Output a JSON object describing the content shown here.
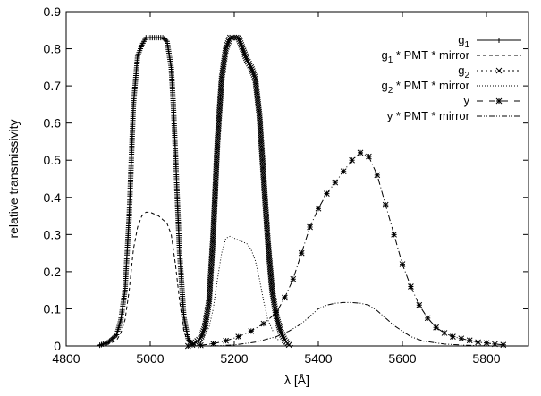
{
  "chart_data": {
    "type": "line",
    "title": "",
    "xlabel": "λ [Å]",
    "ylabel": "relative transmissivity",
    "xlim": [
      4800,
      5900
    ],
    "ylim": [
      0,
      0.9
    ],
    "xticks": [
      4800,
      5000,
      5200,
      5400,
      5600,
      5800
    ],
    "yticks": [
      0,
      0.1,
      0.2,
      0.3,
      0.4,
      0.5,
      0.6,
      0.7,
      0.8,
      0.9
    ],
    "xtick_labels": [
      "4800",
      "5000",
      "5200",
      "5400",
      "5600",
      "5800"
    ],
    "ytick_labels": [
      "0",
      "0.1",
      "0.2",
      "0.3",
      "0.4",
      "0.5",
      "0.6",
      "0.7",
      "0.8",
      "0.9"
    ],
    "grid": false,
    "legend_position": "top-right",
    "series": [
      {
        "name": "g1",
        "legend_main": "g",
        "legend_sub": "1",
        "legend_suffix": "",
        "line": "solid",
        "marker": "plus",
        "x": [
          4880,
          4900,
          4920,
          4930,
          4940,
          4950,
          4955,
          4960,
          4970,
          4980,
          4990,
          5000,
          5010,
          5020,
          5030,
          5040,
          5050,
          5055,
          5060,
          5065,
          5070,
          5080,
          5090,
          5100
        ],
        "y": [
          0.002,
          0.01,
          0.03,
          0.07,
          0.15,
          0.35,
          0.5,
          0.65,
          0.78,
          0.81,
          0.83,
          0.83,
          0.83,
          0.83,
          0.83,
          0.82,
          0.75,
          0.65,
          0.52,
          0.38,
          0.25,
          0.08,
          0.02,
          0.003
        ]
      },
      {
        "name": "g1 * PMT * mirror",
        "legend_main": "g",
        "legend_sub": "1",
        "legend_suffix": " * PMT * mirror",
        "line": "dashed",
        "marker": "none",
        "x": [
          4880,
          4900,
          4920,
          4930,
          4940,
          4950,
          4960,
          4970,
          4980,
          4990,
          5000,
          5010,
          5020,
          5030,
          5040,
          5050,
          5060,
          5070,
          5080,
          5090,
          5100
        ],
        "y": [
          0.001,
          0.005,
          0.015,
          0.035,
          0.07,
          0.15,
          0.26,
          0.32,
          0.35,
          0.36,
          0.36,
          0.355,
          0.35,
          0.34,
          0.33,
          0.3,
          0.22,
          0.12,
          0.04,
          0.01,
          0.002
        ]
      },
      {
        "name": "g2",
        "legend_main": "g",
        "legend_sub": "2",
        "legend_suffix": "",
        "line": "dotted",
        "marker": "x",
        "x": [
          5100,
          5120,
          5130,
          5140,
          5150,
          5160,
          5170,
          5180,
          5190,
          5200,
          5210,
          5220,
          5230,
          5240,
          5250,
          5260,
          5270,
          5280,
          5290,
          5300,
          5310,
          5320,
          5330
        ],
        "y": [
          0.003,
          0.02,
          0.05,
          0.12,
          0.3,
          0.55,
          0.72,
          0.8,
          0.83,
          0.83,
          0.83,
          0.8,
          0.77,
          0.75,
          0.72,
          0.62,
          0.45,
          0.28,
          0.15,
          0.08,
          0.04,
          0.015,
          0.003
        ]
      },
      {
        "name": "g2 * PMT * mirror",
        "legend_main": "g",
        "legend_sub": "2",
        "legend_suffix": " * PMT * mirror",
        "line": "fine-dotted",
        "marker": "none",
        "x": [
          5100,
          5120,
          5140,
          5150,
          5160,
          5170,
          5180,
          5190,
          5200,
          5210,
          5220,
          5230,
          5240,
          5250,
          5260,
          5270,
          5280,
          5300,
          5320,
          5340
        ],
        "y": [
          0.002,
          0.01,
          0.05,
          0.1,
          0.18,
          0.25,
          0.29,
          0.295,
          0.29,
          0.285,
          0.28,
          0.275,
          0.26,
          0.23,
          0.18,
          0.12,
          0.07,
          0.02,
          0.005,
          0.001
        ]
      },
      {
        "name": "y",
        "legend_main": "y",
        "legend_sub": "",
        "legend_suffix": "",
        "line": "dashdot",
        "marker": "star",
        "x": [
          5090,
          5120,
          5150,
          5180,
          5210,
          5240,
          5270,
          5300,
          5320,
          5340,
          5360,
          5380,
          5400,
          5420,
          5440,
          5460,
          5480,
          5500,
          5520,
          5540,
          5560,
          5580,
          5600,
          5620,
          5640,
          5660,
          5680,
          5700,
          5720,
          5740,
          5760,
          5780,
          5800,
          5820,
          5840
        ],
        "y": [
          0.0,
          0.002,
          0.006,
          0.014,
          0.025,
          0.04,
          0.06,
          0.09,
          0.13,
          0.18,
          0.25,
          0.32,
          0.37,
          0.41,
          0.44,
          0.47,
          0.5,
          0.52,
          0.51,
          0.46,
          0.38,
          0.3,
          0.22,
          0.16,
          0.11,
          0.075,
          0.05,
          0.035,
          0.025,
          0.02,
          0.015,
          0.01,
          0.008,
          0.005,
          0.003
        ]
      },
      {
        "name": "y * PMT * mirror",
        "legend_main": "y",
        "legend_sub": "",
        "legend_suffix": " * PMT * mirror",
        "line": "dashdotdot",
        "marker": "none",
        "x": [
          5150,
          5200,
          5250,
          5300,
          5330,
          5360,
          5380,
          5400,
          5420,
          5440,
          5460,
          5480,
          5500,
          5520,
          5540,
          5560,
          5580,
          5600,
          5620,
          5650,
          5700,
          5750,
          5800
        ],
        "y": [
          0.0,
          0.003,
          0.01,
          0.025,
          0.04,
          0.06,
          0.08,
          0.1,
          0.11,
          0.115,
          0.117,
          0.117,
          0.115,
          0.11,
          0.095,
          0.075,
          0.055,
          0.04,
          0.025,
          0.013,
          0.005,
          0.002,
          0.0
        ]
      }
    ]
  }
}
